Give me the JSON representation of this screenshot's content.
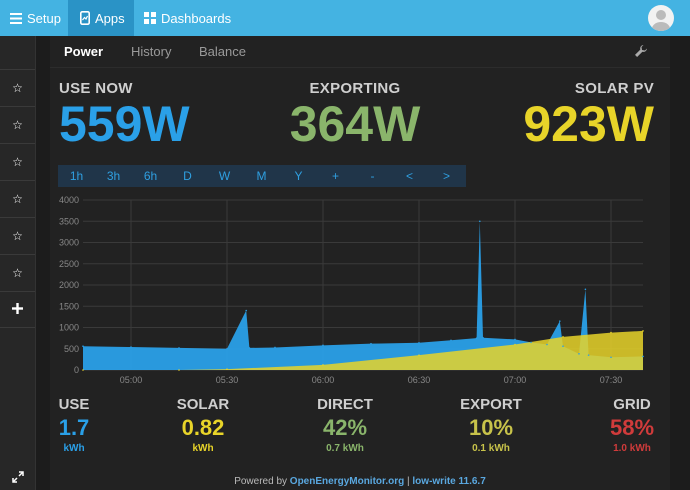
{
  "topbar": {
    "setup_label": "Setup",
    "apps_label": "Apps",
    "dashboards_label": "Dashboards",
    "bar_color": "#44b3e2",
    "active_color": "#2a93c6"
  },
  "sidebar": {
    "items": [
      "star-icon",
      "star-icon",
      "star-icon",
      "star-icon",
      "star-icon",
      "star-icon"
    ],
    "add_icon": "plus-icon",
    "expand_icon": "expand-icon"
  },
  "tabs": [
    {
      "label": "Power",
      "active": true
    },
    {
      "label": "History",
      "active": false
    },
    {
      "label": "Balance",
      "active": false
    }
  ],
  "live": {
    "use": {
      "label": "USE NOW",
      "value": "559W",
      "color": "#2aa0e8"
    },
    "exporting": {
      "label": "EXPORTING",
      "value": "364W",
      "color": "#8ab56b"
    },
    "solar": {
      "label": "SOLAR PV",
      "value": "923W",
      "color": "#e8d429"
    }
  },
  "time_buttons": [
    "1h",
    "3h",
    "6h",
    "D",
    "W",
    "M",
    "Y",
    "+",
    "-",
    "<",
    ">"
  ],
  "chart_data": {
    "type": "area",
    "x_ticks": [
      "05:00",
      "05:30",
      "06:00",
      "06:30",
      "07:00",
      "07:30"
    ],
    "y_ticks": [
      "0",
      "500",
      "1000",
      "1500",
      "2000",
      "2500",
      "3000",
      "3500",
      "4000"
    ],
    "ylim": [
      0,
      4000
    ],
    "xlim": [
      "04:45",
      "07:40"
    ],
    "grid": true,
    "series": [
      {
        "color": "#2aa0e8",
        "points": [
          [
            "04:45",
            560
          ],
          [
            "05:00",
            540
          ],
          [
            "05:15",
            520
          ],
          [
            "05:30",
            500
          ],
          [
            "05:36",
            1400
          ],
          [
            "05:37",
            520
          ],
          [
            "05:45",
            530
          ],
          [
            "06:00",
            580
          ],
          [
            "06:15",
            620
          ],
          [
            "06:30",
            640
          ],
          [
            "06:40",
            700
          ],
          [
            "06:48",
            750
          ],
          [
            "06:49",
            3500
          ],
          [
            "06:50",
            760
          ],
          [
            "07:00",
            720
          ],
          [
            "07:05",
            650
          ],
          [
            "07:10",
            600
          ],
          [
            "07:14",
            1150
          ],
          [
            "07:15",
            560
          ],
          [
            "07:20",
            380
          ],
          [
            "07:22",
            1900
          ],
          [
            "07:23",
            350
          ],
          [
            "07:30",
            300
          ],
          [
            "07:40",
            320
          ]
        ]
      },
      {
        "color": "#e8d429",
        "points": [
          [
            "04:45",
            0
          ],
          [
            "05:15",
            0
          ],
          [
            "05:30",
            20
          ],
          [
            "06:00",
            120
          ],
          [
            "06:30",
            350
          ],
          [
            "07:00",
            600
          ],
          [
            "07:15",
            780
          ],
          [
            "07:30",
            880
          ],
          [
            "07:40",
            920
          ]
        ]
      }
    ]
  },
  "summary": [
    {
      "label": "USE",
      "value": "1.7",
      "unit": "kWh",
      "color": "#2aa0e8"
    },
    {
      "label": "SOLAR",
      "value": "0.82",
      "unit": "kWh",
      "color": "#e8d429"
    },
    {
      "label": "DIRECT",
      "value": "42%",
      "unit": "0.7 kWh",
      "color": "#8ab56b"
    },
    {
      "label": "EXPORT",
      "value": "10%",
      "unit": "0.1 kWh",
      "color": "#c8c34a"
    },
    {
      "label": "GRID",
      "value": "58%",
      "unit": "1.0 kWh",
      "color": "#d03b3b"
    }
  ],
  "footer": {
    "prefix": "Powered by ",
    "link": "OpenEnergyMonitor.org",
    "sep": " | ",
    "version": "low-write 11.6.7"
  }
}
